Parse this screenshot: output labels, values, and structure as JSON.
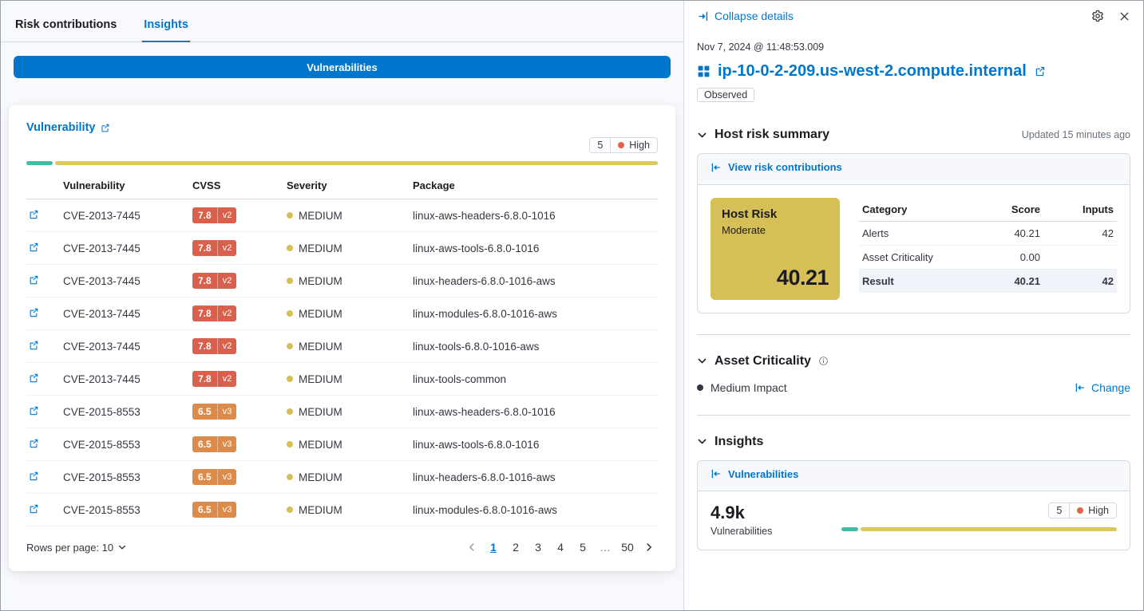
{
  "colors": {
    "primary_blue": "#0077cc",
    "teal_bar": "#46b9a5",
    "gold_bar": "#ddc75f",
    "risk_card_gold": "#d6bf57",
    "cvss_red": "#d8604c",
    "cvss_orange": "#dd8b4b",
    "high_dot": "#e0654e",
    "medium_dot": "#d6bf57"
  },
  "left": {
    "tabs": [
      {
        "label": "Risk contributions"
      },
      {
        "label": "Insights"
      }
    ],
    "banner_button": "Vulnerabilities",
    "card": {
      "title_link": "Vulnerability",
      "count_badge": "5",
      "severity_label": "High",
      "headers": [
        "Vulnerability",
        "CVSS",
        "Severity",
        "Package"
      ],
      "rows": [
        {
          "cve": "CVE-2013-7445",
          "score": "7.8",
          "ver": "v2",
          "severity": "MEDIUM",
          "package": "linux-aws-headers-6.8.0-1016"
        },
        {
          "cve": "CVE-2013-7445",
          "score": "7.8",
          "ver": "v2",
          "severity": "MEDIUM",
          "package": "linux-aws-tools-6.8.0-1016"
        },
        {
          "cve": "CVE-2013-7445",
          "score": "7.8",
          "ver": "v2",
          "severity": "MEDIUM",
          "package": "linux-headers-6.8.0-1016-aws"
        },
        {
          "cve": "CVE-2013-7445",
          "score": "7.8",
          "ver": "v2",
          "severity": "MEDIUM",
          "package": "linux-modules-6.8.0-1016-aws"
        },
        {
          "cve": "CVE-2013-7445",
          "score": "7.8",
          "ver": "v2",
          "severity": "MEDIUM",
          "package": "linux-tools-6.8.0-1016-aws"
        },
        {
          "cve": "CVE-2013-7445",
          "score": "7.8",
          "ver": "v2",
          "severity": "MEDIUM",
          "package": "linux-tools-common"
        },
        {
          "cve": "CVE-2015-8553",
          "score": "6.5",
          "ver": "v3",
          "severity": "MEDIUM",
          "package": "linux-aws-headers-6.8.0-1016"
        },
        {
          "cve": "CVE-2015-8553",
          "score": "6.5",
          "ver": "v3",
          "severity": "MEDIUM",
          "package": "linux-aws-tools-6.8.0-1016"
        },
        {
          "cve": "CVE-2015-8553",
          "score": "6.5",
          "ver": "v3",
          "severity": "MEDIUM",
          "package": "linux-headers-6.8.0-1016-aws"
        },
        {
          "cve": "CVE-2015-8553",
          "score": "6.5",
          "ver": "v3",
          "severity": "MEDIUM",
          "package": "linux-modules-6.8.0-1016-aws"
        }
      ],
      "rows_per_page_label": "Rows per page: 10",
      "pagination": {
        "pages": [
          "1",
          "2",
          "3",
          "4",
          "5",
          "…",
          "50"
        ],
        "active": "1"
      }
    }
  },
  "flyout": {
    "collapse_label": "Collapse details",
    "timestamp": "Nov 7, 2024 @ 11:48:53.009",
    "host_title": "ip-10-0-2-209.us-west-2.compute.internal",
    "observed_badge": "Observed",
    "risk_summary": {
      "title": "Host risk summary",
      "updated": "Updated 15 minutes ago",
      "view_link": "View risk contributions",
      "risk_card": {
        "title": "Host Risk",
        "level": "Moderate",
        "score": "40.21"
      },
      "table": {
        "headers": [
          "Category",
          "Score",
          "Inputs"
        ],
        "rows": [
          {
            "category": "Alerts",
            "score": "40.21",
            "inputs": "42"
          },
          {
            "category": "Asset Criticality",
            "score": "0.00",
            "inputs": ""
          },
          {
            "category": "Result",
            "score": "40.21",
            "inputs": "42"
          }
        ]
      }
    },
    "asset_criticality": {
      "title": "Asset Criticality",
      "value": "Medium Impact",
      "change_link": "Change"
    },
    "insights": {
      "title": "Insights",
      "panel_link": "Vulnerabilities",
      "count": "4.9k",
      "count_label": "Vulnerabilities",
      "badge_count": "5",
      "badge_label": "High"
    }
  }
}
